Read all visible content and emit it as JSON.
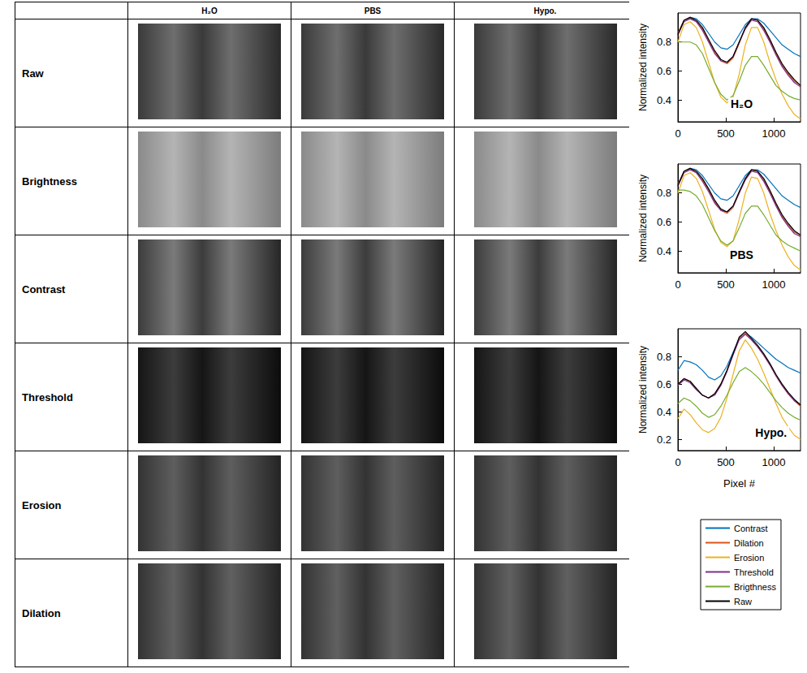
{
  "table": {
    "columns": [
      "H₂O",
      "PBS",
      "Hypo."
    ],
    "rows": [
      "Raw",
      "Brightness",
      "Contrast",
      "Threshold",
      "Erosion",
      "Dilation"
    ]
  },
  "chart_data": [
    {
      "type": "line",
      "title": "H₂O",
      "y_label": "Normalized intensity",
      "grid": false,
      "x": [
        0,
        64,
        128,
        192,
        256,
        320,
        384,
        448,
        512,
        576,
        640,
        704,
        768,
        832,
        896,
        960,
        1024,
        1088,
        1152,
        1216,
        1280
      ],
      "xlim": [
        0,
        1280
      ],
      "xticks": [
        0,
        500,
        1000
      ],
      "ylim": [
        0.25,
        1.0
      ],
      "yticks": [
        0.4,
        0.6,
        0.8
      ],
      "series": [
        {
          "name": "Contrast",
          "color": "#0072BD",
          "values": [
            0.86,
            0.95,
            0.97,
            0.96,
            0.92,
            0.86,
            0.8,
            0.76,
            0.75,
            0.78,
            0.85,
            0.92,
            0.96,
            0.96,
            0.93,
            0.88,
            0.83,
            0.78,
            0.75,
            0.72,
            0.7
          ]
        },
        {
          "name": "Dilation",
          "color": "#D95319",
          "values": [
            0.86,
            0.95,
            0.97,
            0.94,
            0.89,
            0.81,
            0.73,
            0.67,
            0.65,
            0.69,
            0.79,
            0.9,
            0.96,
            0.95,
            0.89,
            0.81,
            0.72,
            0.64,
            0.58,
            0.53,
            0.5
          ]
        },
        {
          "name": "Erosion",
          "color": "#EDB120",
          "values": [
            0.8,
            0.92,
            0.94,
            0.9,
            0.8,
            0.66,
            0.52,
            0.42,
            0.38,
            0.42,
            0.58,
            0.78,
            0.9,
            0.9,
            0.8,
            0.66,
            0.54,
            0.44,
            0.36,
            0.3,
            0.27
          ]
        },
        {
          "name": "Threshold",
          "color": "#7E2F8E",
          "values": [
            0.85,
            0.94,
            0.96,
            0.94,
            0.88,
            0.8,
            0.72,
            0.67,
            0.66,
            0.7,
            0.8,
            0.89,
            0.95,
            0.94,
            0.88,
            0.8,
            0.71,
            0.63,
            0.57,
            0.52,
            0.49
          ]
        },
        {
          "name": "Brigthness",
          "color": "#77AC30",
          "values": [
            0.8,
            0.8,
            0.8,
            0.78,
            0.72,
            0.62,
            0.52,
            0.44,
            0.4,
            0.43,
            0.53,
            0.64,
            0.7,
            0.7,
            0.64,
            0.57,
            0.5,
            0.46,
            0.43,
            0.41,
            0.4
          ]
        },
        {
          "name": "Raw",
          "color": "#000000",
          "values": [
            0.85,
            0.95,
            0.97,
            0.95,
            0.9,
            0.82,
            0.74,
            0.68,
            0.66,
            0.7,
            0.8,
            0.9,
            0.96,
            0.95,
            0.9,
            0.82,
            0.73,
            0.65,
            0.59,
            0.54,
            0.5
          ]
        }
      ]
    },
    {
      "type": "line",
      "title": "PBS",
      "y_label": "Normalized intensity",
      "grid": false,
      "x": [
        0,
        64,
        128,
        192,
        256,
        320,
        384,
        448,
        512,
        576,
        640,
        704,
        768,
        832,
        896,
        960,
        1024,
        1088,
        1152,
        1216,
        1280
      ],
      "xlim": [
        0,
        1280
      ],
      "xticks": [
        0,
        500,
        1000
      ],
      "ylim": [
        0.25,
        1.0
      ],
      "yticks": [
        0.4,
        0.6,
        0.8
      ],
      "series": [
        {
          "name": "Contrast",
          "color": "#0072BD",
          "values": [
            0.86,
            0.95,
            0.97,
            0.96,
            0.92,
            0.86,
            0.8,
            0.76,
            0.75,
            0.78,
            0.85,
            0.92,
            0.96,
            0.96,
            0.93,
            0.88,
            0.83,
            0.78,
            0.75,
            0.72,
            0.7
          ]
        },
        {
          "name": "Dilation",
          "color": "#D95319",
          "values": [
            0.86,
            0.95,
            0.97,
            0.94,
            0.89,
            0.82,
            0.74,
            0.68,
            0.66,
            0.7,
            0.8,
            0.9,
            0.96,
            0.95,
            0.89,
            0.81,
            0.72,
            0.64,
            0.58,
            0.53,
            0.51
          ]
        },
        {
          "name": "Erosion",
          "color": "#EDB120",
          "values": [
            0.8,
            0.92,
            0.94,
            0.9,
            0.81,
            0.68,
            0.55,
            0.46,
            0.43,
            0.47,
            0.62,
            0.8,
            0.91,
            0.9,
            0.8,
            0.66,
            0.54,
            0.44,
            0.36,
            0.3,
            0.27
          ]
        },
        {
          "name": "Threshold",
          "color": "#7E2F8E",
          "values": [
            0.85,
            0.94,
            0.96,
            0.94,
            0.88,
            0.81,
            0.73,
            0.68,
            0.67,
            0.71,
            0.8,
            0.89,
            0.95,
            0.94,
            0.88,
            0.8,
            0.71,
            0.63,
            0.57,
            0.52,
            0.5
          ]
        },
        {
          "name": "Brigthness",
          "color": "#77AC30",
          "values": [
            0.82,
            0.82,
            0.81,
            0.78,
            0.72,
            0.63,
            0.54,
            0.47,
            0.44,
            0.47,
            0.56,
            0.66,
            0.71,
            0.71,
            0.65,
            0.58,
            0.51,
            0.47,
            0.44,
            0.42,
            0.4
          ]
        },
        {
          "name": "Raw",
          "color": "#000000",
          "values": [
            0.85,
            0.95,
            0.97,
            0.95,
            0.9,
            0.83,
            0.75,
            0.69,
            0.67,
            0.71,
            0.81,
            0.9,
            0.96,
            0.95,
            0.9,
            0.82,
            0.73,
            0.65,
            0.59,
            0.54,
            0.51
          ]
        }
      ]
    },
    {
      "type": "line",
      "title": "Hypo.",
      "y_label": "Normalized intensity",
      "x_label": "Pixel #",
      "grid": false,
      "legend": "below",
      "x": [
        0,
        64,
        128,
        192,
        256,
        320,
        384,
        448,
        512,
        576,
        640,
        704,
        768,
        832,
        896,
        960,
        1024,
        1088,
        1152,
        1216,
        1280
      ],
      "xlim": [
        0,
        1280
      ],
      "xticks": [
        0,
        500,
        1000
      ],
      "ylim": [
        0.12,
        1.0
      ],
      "yticks": [
        0.2,
        0.4,
        0.6,
        0.8
      ],
      "series": [
        {
          "name": "Contrast",
          "color": "#0072BD",
          "values": [
            0.7,
            0.77,
            0.76,
            0.74,
            0.7,
            0.65,
            0.63,
            0.66,
            0.73,
            0.83,
            0.93,
            0.97,
            0.94,
            0.9,
            0.86,
            0.82,
            0.78,
            0.75,
            0.72,
            0.7,
            0.68
          ]
        },
        {
          "name": "Dilation",
          "color": "#D95319",
          "values": [
            0.6,
            0.64,
            0.62,
            0.57,
            0.52,
            0.5,
            0.53,
            0.6,
            0.7,
            0.82,
            0.93,
            0.97,
            0.92,
            0.87,
            0.81,
            0.74,
            0.66,
            0.59,
            0.53,
            0.48,
            0.44
          ]
        },
        {
          "name": "Erosion",
          "color": "#EDB120",
          "values": [
            0.35,
            0.42,
            0.38,
            0.32,
            0.27,
            0.25,
            0.28,
            0.36,
            0.5,
            0.67,
            0.84,
            0.92,
            0.86,
            0.78,
            0.68,
            0.57,
            0.46,
            0.36,
            0.29,
            0.23,
            0.2
          ]
        },
        {
          "name": "Threshold",
          "color": "#7E2F8E",
          "values": [
            0.59,
            0.63,
            0.61,
            0.56,
            0.52,
            0.5,
            0.52,
            0.59,
            0.69,
            0.81,
            0.92,
            0.96,
            0.92,
            0.87,
            0.81,
            0.74,
            0.66,
            0.59,
            0.53,
            0.48,
            0.45
          ]
        },
        {
          "name": "Brigthness",
          "color": "#77AC30",
          "values": [
            0.46,
            0.5,
            0.48,
            0.44,
            0.39,
            0.36,
            0.38,
            0.44,
            0.52,
            0.61,
            0.69,
            0.72,
            0.69,
            0.65,
            0.6,
            0.54,
            0.48,
            0.43,
            0.39,
            0.36,
            0.34
          ]
        },
        {
          "name": "Raw",
          "color": "#000000",
          "values": [
            0.6,
            0.64,
            0.62,
            0.57,
            0.52,
            0.5,
            0.53,
            0.6,
            0.7,
            0.82,
            0.94,
            0.98,
            0.93,
            0.88,
            0.82,
            0.75,
            0.67,
            0.6,
            0.54,
            0.49,
            0.45
          ]
        }
      ]
    }
  ]
}
